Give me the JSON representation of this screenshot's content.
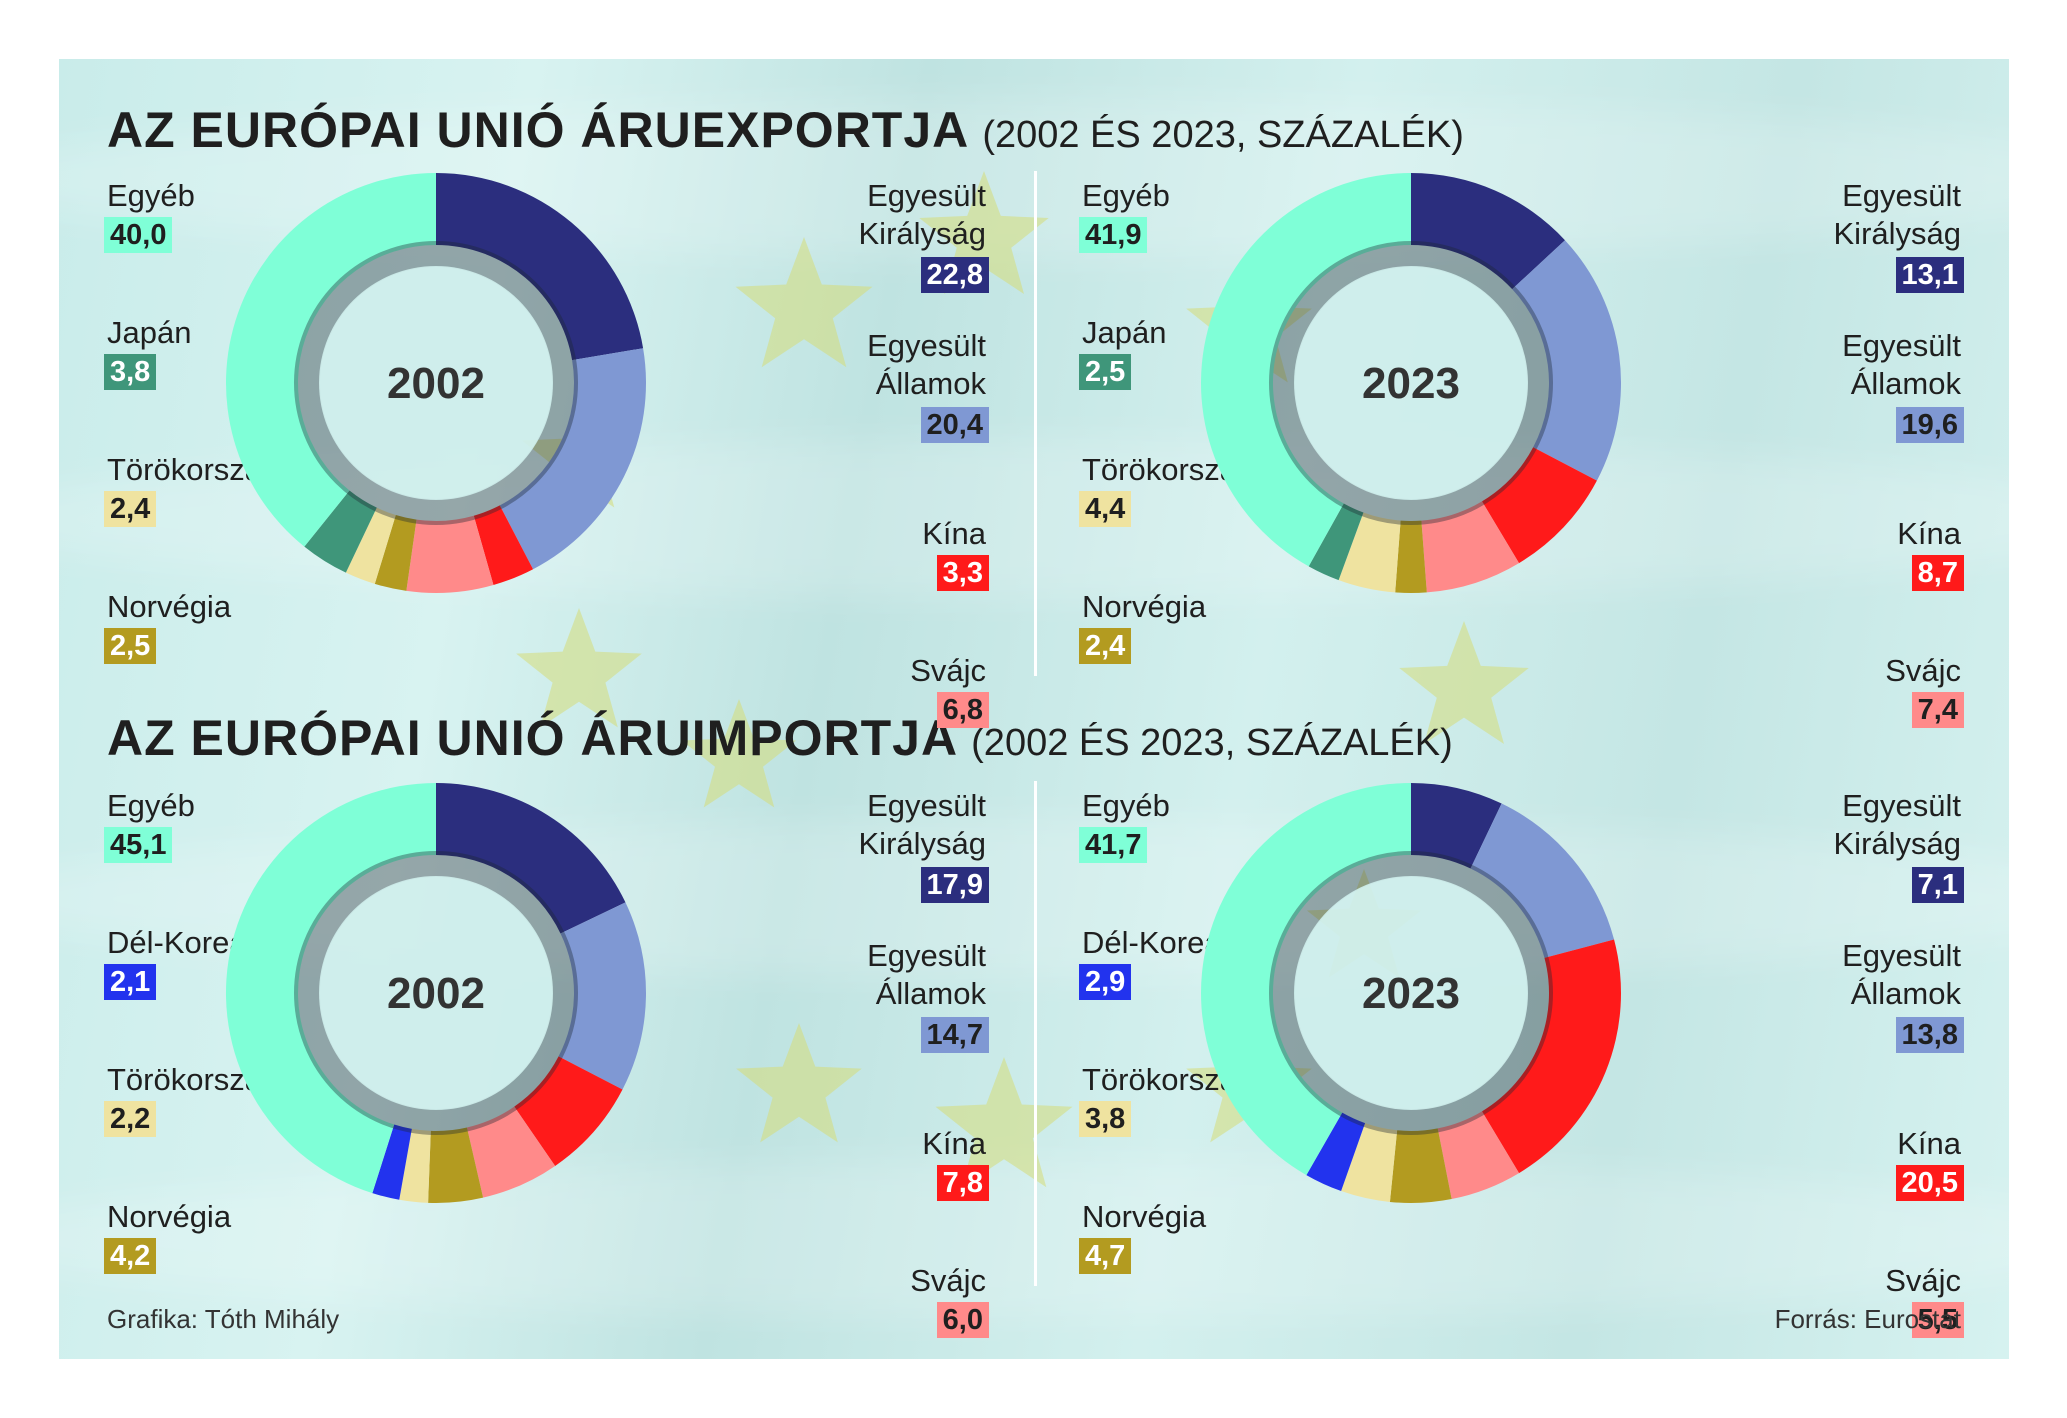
{
  "colors": {
    "egyeb": "#7fffd7",
    "japan": "#3f967a",
    "torokorszag": "#efe3a0",
    "norvegia": "#b39b20",
    "svajc": "#ff8a8a",
    "kina": "#ff1a1a",
    "usa": "#7f98d3",
    "uk": "#2b2e7e",
    "delkorea": "#2233ee"
  },
  "export": {
    "title": "AZ EURÓPAI UNIÓ ÁRUEXPORTJA",
    "subtitle": "(2002 ÉS 2023, SZÁZALÉK)"
  },
  "import": {
    "title": "AZ EURÓPAI UNIÓ ÁRUIMPORTJA",
    "subtitle": "(2002 ÉS 2023, SZÁZALÉK)"
  },
  "footer": {
    "credit": "Grafika: Tóth Mihály",
    "source": "Forrás: Eurostat"
  },
  "chart_data": [
    {
      "type": "pie",
      "variant": "donut",
      "group": "export",
      "year": "2002",
      "slices": [
        {
          "label": "Egyesült Királyság",
          "value": 22.8,
          "display": "22,8",
          "color": "#2b2e7e"
        },
        {
          "label": "Egyesült Államok",
          "value": 20.4,
          "display": "20,4",
          "color": "#7f98d3"
        },
        {
          "label": "Kína",
          "value": 3.3,
          "display": "3,3",
          "color": "#ff1a1a"
        },
        {
          "label": "Svájc",
          "value": 6.8,
          "display": "6,8",
          "color": "#ff8a8a"
        },
        {
          "label": "Norvégia",
          "value": 2.5,
          "display": "2,5",
          "color": "#b39b20"
        },
        {
          "label": "Törökország",
          "value": 2.4,
          "display": "2,4",
          "color": "#efe3a0"
        },
        {
          "label": "Japán",
          "value": 3.8,
          "display": "3,8",
          "color": "#3f967a"
        },
        {
          "label": "Egyéb",
          "value": 40.0,
          "display": "40,0",
          "color": "#7fffd7"
        }
      ]
    },
    {
      "type": "pie",
      "variant": "donut",
      "group": "export",
      "year": "2023",
      "slices": [
        {
          "label": "Egyesült Királyság",
          "value": 13.1,
          "display": "13,1",
          "color": "#2b2e7e"
        },
        {
          "label": "Egyesült Államok",
          "value": 19.6,
          "display": "19,6",
          "color": "#7f98d3"
        },
        {
          "label": "Kína",
          "value": 8.7,
          "display": "8,7",
          "color": "#ff1a1a"
        },
        {
          "label": "Svájc",
          "value": 7.4,
          "display": "7,4",
          "color": "#ff8a8a"
        },
        {
          "label": "Norvégia",
          "value": 2.4,
          "display": "2,4",
          "color": "#b39b20"
        },
        {
          "label": "Törökország",
          "value": 4.4,
          "display": "4,4",
          "color": "#efe3a0"
        },
        {
          "label": "Japán",
          "value": 2.5,
          "display": "2,5",
          "color": "#3f967a"
        },
        {
          "label": "Egyéb",
          "value": 41.9,
          "display": "41,9",
          "color": "#7fffd7"
        }
      ]
    },
    {
      "type": "pie",
      "variant": "donut",
      "group": "import",
      "year": "2002",
      "slices": [
        {
          "label": "Egyesült Királyság",
          "value": 17.9,
          "display": "17,9",
          "color": "#2b2e7e"
        },
        {
          "label": "Egyesült Államok",
          "value": 14.7,
          "display": "14,7",
          "color": "#7f98d3"
        },
        {
          "label": "Kína",
          "value": 7.8,
          "display": "7,8",
          "color": "#ff1a1a"
        },
        {
          "label": "Svájc",
          "value": 6.0,
          "display": "6,0",
          "color": "#ff8a8a"
        },
        {
          "label": "Norvégia",
          "value": 4.2,
          "display": "4,2",
          "color": "#b39b20"
        },
        {
          "label": "Törökország",
          "value": 2.2,
          "display": "2,2",
          "color": "#efe3a0"
        },
        {
          "label": "Dél-Korea",
          "value": 2.1,
          "display": "2,1",
          "color": "#2233ee"
        },
        {
          "label": "Egyéb",
          "value": 45.1,
          "display": "45,1",
          "color": "#7fffd7"
        }
      ]
    },
    {
      "type": "pie",
      "variant": "donut",
      "group": "import",
      "year": "2023",
      "slices": [
        {
          "label": "Egyesült Királyság",
          "value": 7.1,
          "display": "7,1",
          "color": "#2b2e7e"
        },
        {
          "label": "Egyesült Államok",
          "value": 13.8,
          "display": "13,8",
          "color": "#7f98d3"
        },
        {
          "label": "Kína",
          "value": 20.5,
          "display": "20,5",
          "color": "#ff1a1a"
        },
        {
          "label": "Svájc",
          "value": 5.5,
          "display": "5,5",
          "color": "#ff8a8a"
        },
        {
          "label": "Norvégia",
          "value": 4.7,
          "display": "4,7",
          "color": "#b39b20"
        },
        {
          "label": "Törökország",
          "value": 3.8,
          "display": "3,8",
          "color": "#efe3a0"
        },
        {
          "label": "Dél-Korea",
          "value": 2.9,
          "display": "2,9",
          "color": "#2233ee"
        },
        {
          "label": "Egyéb",
          "value": 41.7,
          "display": "41,7",
          "color": "#7fffd7"
        }
      ]
    }
  ]
}
